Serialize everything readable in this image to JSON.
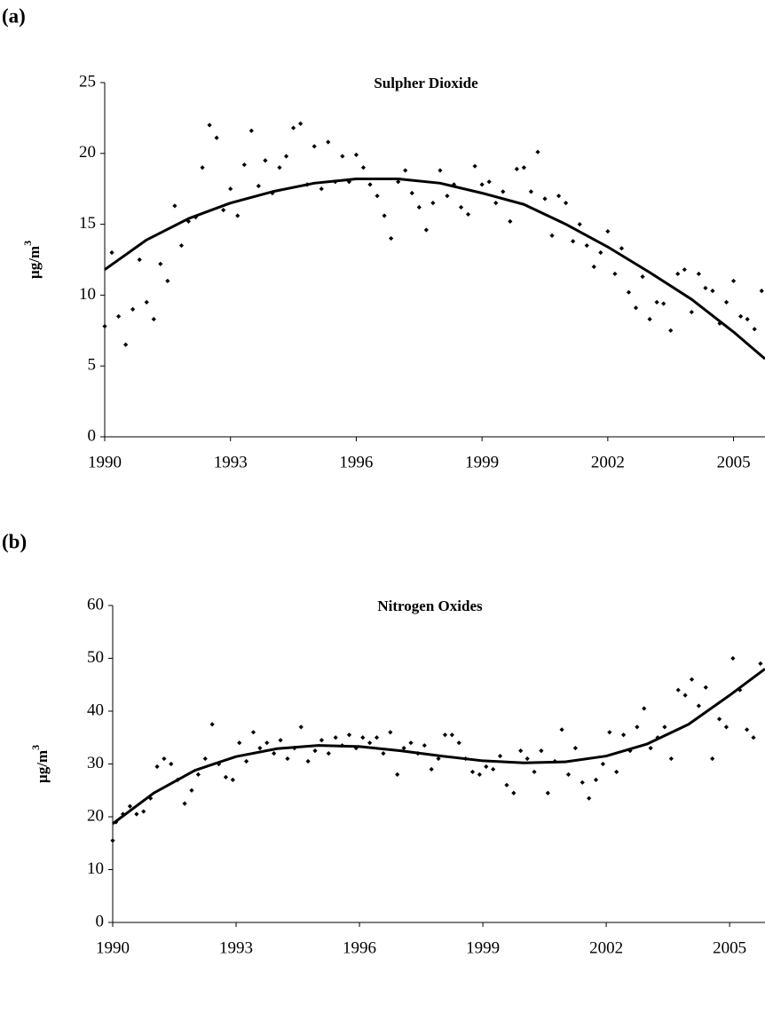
{
  "chart_data": [
    {
      "type": "scatter",
      "panel_label": "(a)",
      "title": "Sulpher Dioxide",
      "y_label": "µg/m",
      "y_label_sup": "3",
      "xlim": [
        1990,
        2005.75
      ],
      "ylim": [
        0,
        25
      ],
      "xticks": [
        1990,
        1993,
        1996,
        1999,
        2002,
        2005
      ],
      "yticks": [
        0,
        5,
        10,
        15,
        20,
        25
      ],
      "series": [
        {
          "style": "markers",
          "color": "#000000",
          "x": [
            1990.0,
            1990.17,
            1990.33,
            1990.5,
            1990.67,
            1990.83,
            1991.0,
            1991.17,
            1991.33,
            1991.5,
            1991.67,
            1991.83,
            1992.0,
            1992.17,
            1992.33,
            1992.5,
            1992.67,
            1992.83,
            1993.0,
            1993.17,
            1993.33,
            1993.5,
            1993.67,
            1993.83,
            1994.0,
            1994.17,
            1994.33,
            1994.5,
            1994.67,
            1994.83,
            1995.0,
            1995.17,
            1995.33,
            1995.5,
            1995.67,
            1995.83,
            1996.0,
            1996.17,
            1996.33,
            1996.5,
            1996.67,
            1996.83,
            1997.0,
            1997.17,
            1997.33,
            1997.5,
            1997.67,
            1997.83,
            1998.0,
            1998.17,
            1998.33,
            1998.5,
            1998.67,
            1998.83,
            1999.0,
            1999.17,
            1999.33,
            1999.5,
            1999.67,
            1999.83,
            2000.0,
            2000.17,
            2000.33,
            2000.5,
            2000.67,
            2000.83,
            2001.0,
            2001.17,
            2001.33,
            2001.5,
            2001.67,
            2001.83,
            2002.0,
            2002.17,
            2002.33,
            2002.5,
            2002.67,
            2002.83,
            2003.0,
            2003.17,
            2003.33,
            2003.5,
            2003.67,
            2003.83,
            2004.0,
            2004.17,
            2004.33,
            2004.5,
            2004.67,
            2004.83,
            2005.0,
            2005.17,
            2005.33,
            2005.5,
            2005.67
          ],
          "values": [
            7.8,
            13.0,
            8.5,
            6.5,
            9.0,
            12.5,
            9.5,
            8.3,
            12.2,
            11.0,
            16.3,
            13.5,
            15.2,
            15.5,
            19.0,
            22.0,
            21.1,
            16.0,
            17.5,
            15.6,
            19.2,
            21.6,
            17.7,
            19.5,
            17.2,
            19.0,
            19.8,
            21.8,
            22.1,
            17.8,
            20.5,
            17.5,
            20.8,
            18.0,
            19.8,
            18.0,
            19.9,
            19.0,
            17.8,
            17.0,
            15.6,
            14.0,
            18.0,
            18.8,
            17.2,
            16.2,
            14.6,
            16.5,
            18.8,
            17.0,
            17.8,
            16.2,
            15.7,
            19.1,
            17.8,
            18.0,
            16.5,
            17.3,
            15.2,
            18.9,
            19.0,
            17.3,
            20.1,
            16.8,
            14.2,
            17.0,
            16.5,
            13.8,
            15.0,
            13.5,
            12.0,
            13.0,
            14.5,
            11.5,
            13.3,
            10.2,
            9.1,
            11.3,
            8.3,
            9.5,
            9.4,
            7.5,
            11.5,
            11.8,
            8.8,
            11.5,
            10.5,
            10.3,
            8.0,
            9.5,
            11.0,
            8.5,
            8.3,
            7.6,
            10.3
          ]
        },
        {
          "style": "line",
          "color": "#000000",
          "x": [
            1990,
            1991,
            1992,
            1993,
            1994,
            1995,
            1996,
            1997,
            1998,
            1999,
            2000,
            2001,
            2002,
            2003,
            2004,
            2005,
            2005.75
          ],
          "values": [
            11.8,
            13.9,
            15.4,
            16.5,
            17.3,
            17.9,
            18.2,
            18.2,
            17.9,
            17.2,
            16.4,
            15.0,
            13.4,
            11.6,
            9.7,
            7.4,
            5.5
          ]
        }
      ]
    },
    {
      "type": "scatter",
      "panel_label": "(b)",
      "title": "Nitrogen Oxides",
      "y_label": "µg/m",
      "y_label_sup": "3",
      "xlim": [
        1990,
        2005.86
      ],
      "ylim": [
        0,
        60
      ],
      "xticks": [
        1990,
        1993,
        1996,
        1999,
        2002,
        2005
      ],
      "yticks": [
        0,
        10,
        20,
        30,
        40,
        50,
        60
      ],
      "series": [
        {
          "style": "markers",
          "color": "#000000",
          "x": [
            1990.0,
            1990.08,
            1990.25,
            1990.42,
            1990.58,
            1990.75,
            1990.92,
            1991.08,
            1991.25,
            1991.42,
            1991.58,
            1991.75,
            1991.92,
            1992.08,
            1992.25,
            1992.42,
            1992.58,
            1992.75,
            1992.92,
            1993.08,
            1993.25,
            1993.42,
            1993.58,
            1993.75,
            1993.92,
            1994.08,
            1994.25,
            1994.42,
            1994.58,
            1994.75,
            1994.92,
            1995.08,
            1995.25,
            1995.42,
            1995.58,
            1995.75,
            1995.92,
            1996.08,
            1996.25,
            1996.42,
            1996.58,
            1996.75,
            1996.92,
            1997.08,
            1997.25,
            1997.42,
            1997.58,
            1997.75,
            1997.92,
            1998.08,
            1998.25,
            1998.42,
            1998.58,
            1998.75,
            1998.92,
            1999.08,
            1999.25,
            1999.42,
            1999.58,
            1999.75,
            1999.92,
            2000.08,
            2000.25,
            2000.42,
            2000.58,
            2000.75,
            2000.92,
            2001.08,
            2001.25,
            2001.42,
            2001.58,
            2001.75,
            2001.92,
            2002.08,
            2002.25,
            2002.42,
            2002.58,
            2002.75,
            2002.92,
            2003.08,
            2003.25,
            2003.42,
            2003.58,
            2003.75,
            2003.92,
            2004.08,
            2004.25,
            2004.42,
            2004.58,
            2004.75,
            2004.92,
            2005.08,
            2005.25,
            2005.42,
            2005.58,
            2005.75
          ],
          "values": [
            15.5,
            19,
            20.5,
            22,
            20.5,
            21,
            23.5,
            29.5,
            31,
            30,
            27,
            22.5,
            25,
            28,
            31,
            37.5,
            30,
            27.5,
            27,
            34,
            30.5,
            36,
            33,
            34,
            32,
            34.5,
            31,
            33,
            37,
            30.5,
            32.5,
            34.5,
            32,
            35,
            33.5,
            35.5,
            33,
            35,
            34,
            35,
            32,
            36,
            28,
            33,
            34,
            32,
            33.5,
            29,
            31,
            35.5,
            35.5,
            34,
            31,
            28.5,
            28,
            29.5,
            29,
            31.5,
            26,
            24.5,
            32.5,
            31,
            28.5,
            32.5,
            24.5,
            30.5,
            36.5,
            28,
            33,
            26.5,
            23.5,
            27,
            30,
            36,
            28.5,
            35.5,
            32.5,
            37,
            40.5,
            33,
            35,
            37,
            31,
            44,
            43,
            46,
            41,
            44.5,
            31,
            38.5,
            37,
            50,
            44,
            36.5,
            35,
            49
          ]
        },
        {
          "style": "line",
          "color": "#000000",
          "x": [
            1990,
            1991,
            1992,
            1993,
            1994,
            1995,
            1996,
            1997,
            1998,
            1999,
            2000,
            2001,
            2002,
            2003,
            2004,
            2005,
            2005.86
          ],
          "values": [
            18.7,
            24.5,
            28.8,
            31.4,
            32.9,
            33.5,
            33.3,
            32.5,
            31.5,
            30.6,
            30.2,
            30.4,
            31.5,
            33.8,
            37.5,
            43,
            48
          ]
        }
      ]
    }
  ]
}
